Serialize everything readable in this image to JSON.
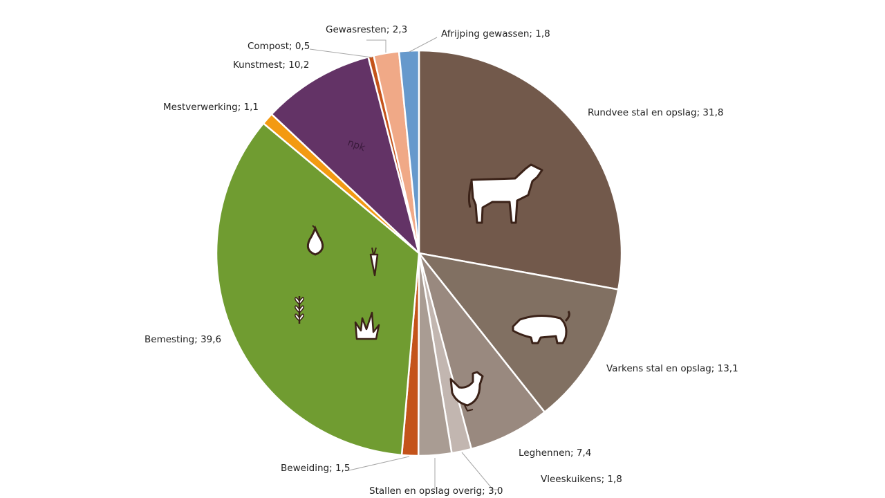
{
  "chart_data": {
    "type": "pie",
    "title": "",
    "start": "top",
    "direction": "clockwise",
    "slices": [
      {
        "label": "Rundvee stal en opslag; 31,8",
        "name": "Rundvee stal en opslag",
        "value": 31.8,
        "color": "#72594b",
        "icon": "cow-icon"
      },
      {
        "label": "Varkens stal en opslag; 13,1",
        "name": "Varkens stal en opslag",
        "value": 13.1,
        "color": "#817062",
        "icon": "pig-icon"
      },
      {
        "label": "Leghennen; 7,4",
        "name": "Leghennen",
        "value": 7.4,
        "color": "#99897f",
        "icon": "chicken-icon"
      },
      {
        "label": "Vleeskuikens; 1,8",
        "name": "Vleeskuikens",
        "value": 1.8,
        "color": "#c2b6b0"
      },
      {
        "label": "Stallen en opslag overig; 3,0",
        "name": "Stallen en opslag overig",
        "value": 3.0,
        "color": "#a99c93"
      },
      {
        "label": "Beweiding; 1,5",
        "name": "Beweiding",
        "value": 1.5,
        "color": "#c4531a"
      },
      {
        "label": "Bemesting; 39,6",
        "name": "Bemesting",
        "value": 39.6,
        "color": "#709c31",
        "icon": "crops-icon"
      },
      {
        "label": "Mestverwerking; 1,1",
        "name": "Mestverwerking",
        "value": 1.1,
        "color": "#f39a12"
      },
      {
        "label": "Kunstmest; 10,2",
        "name": "Kunstmest",
        "value": 10.2,
        "color": "#633366",
        "icon": "npk-icon"
      },
      {
        "label": "Compost; 0,5",
        "name": "Compost",
        "value": 0.5,
        "color": "#c4531a"
      },
      {
        "label": "Gewasresten; 2,3",
        "name": "Gewasresten",
        "value": 2.3,
        "color": "#f0a987"
      },
      {
        "label": "Afrijping gewassen; 1,8",
        "name": "Afrijping gewassen",
        "value": 1.8,
        "color": "#6699cc"
      }
    ],
    "icon_text": {
      "npk": "npk"
    },
    "legend": "none"
  }
}
